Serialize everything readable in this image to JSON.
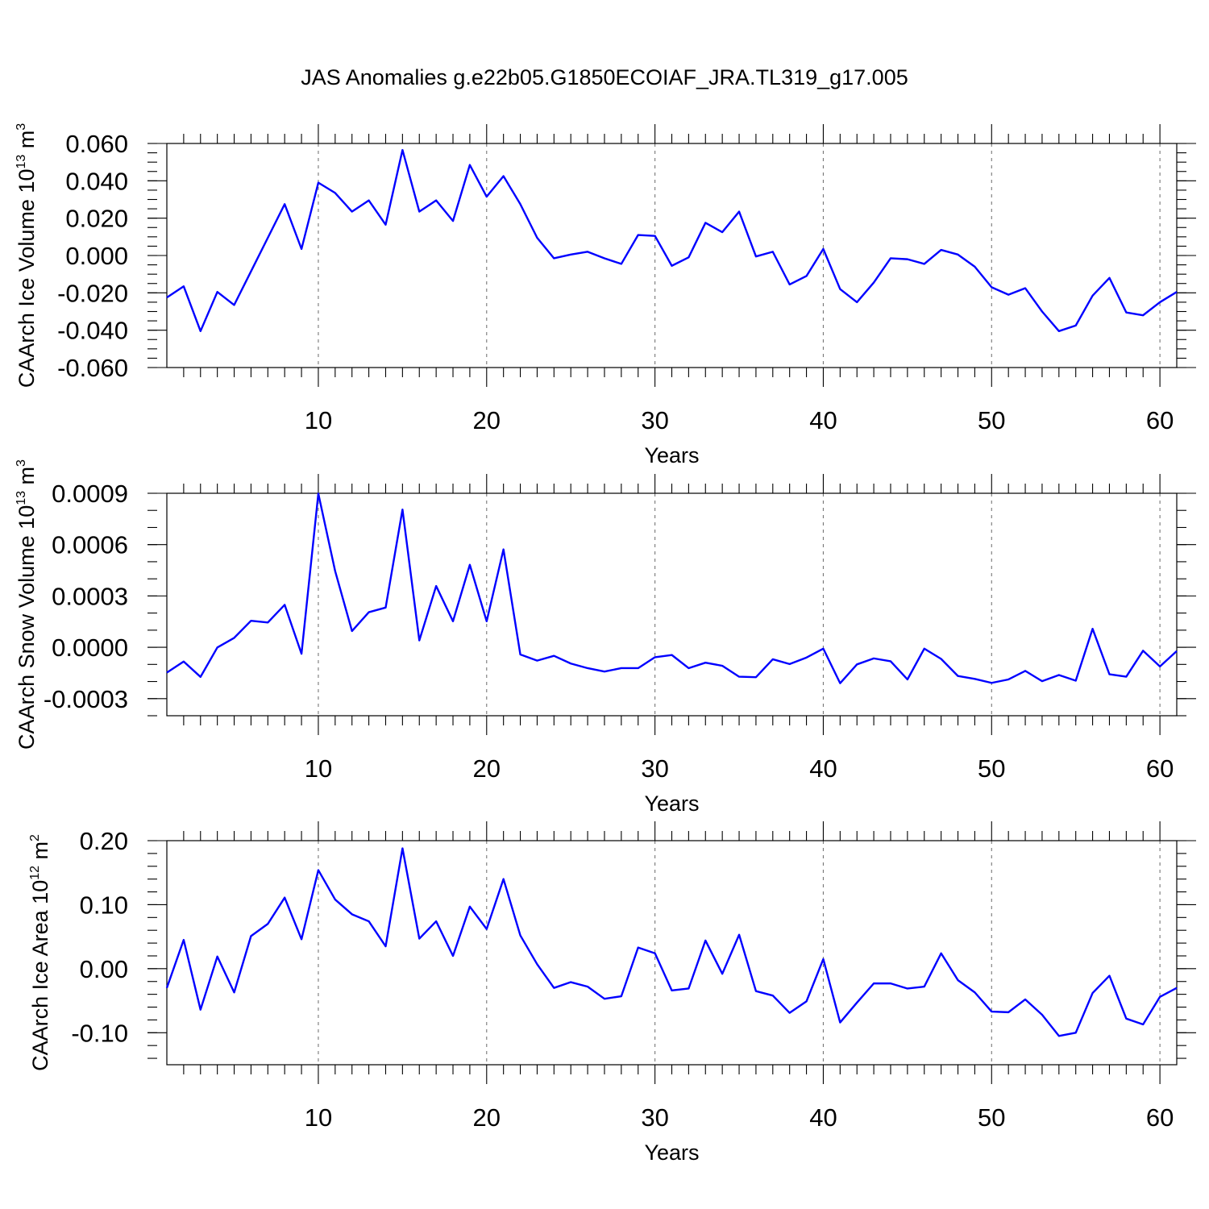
{
  "title": "JAS Anomalies g.e22b05.G1850ECOIAF_JRA.TL319_g17.005",
  "chart_data": [
    {
      "type": "line",
      "ylabel": {
        "text": "CAArch Ice Volume 10",
        "sup1": "13",
        "mid": " m",
        "sup2": "3"
      },
      "xlabel": "Years",
      "x_start": 1,
      "xlim": [
        1,
        61
      ],
      "ylim": [
        -0.06,
        0.06
      ],
      "yticks": [
        -0.06,
        -0.04,
        -0.02,
        0.0,
        0.02,
        0.04,
        0.06
      ],
      "ytick_labels": [
        "-0.060",
        "-0.040",
        "-0.020",
        "0.000",
        "0.020",
        "0.040",
        "0.060"
      ],
      "y_minor": 0.005,
      "xticks": [
        10,
        20,
        30,
        40,
        50,
        60
      ],
      "xtick_labels": [
        "10",
        "20",
        "30",
        "40",
        "50",
        "60"
      ],
      "grid": "dashed vertical at x major ticks",
      "series_color": "#0000ff",
      "values": [
        -0.0225,
        -0.0165,
        -0.0405,
        -0.0195,
        -0.0265,
        -0.0085,
        0.0095,
        0.0275,
        0.0035,
        0.039,
        0.0335,
        0.0235,
        0.0295,
        0.0165,
        0.0565,
        0.0235,
        0.0295,
        0.0185,
        0.0485,
        0.0315,
        0.0425,
        0.0275,
        0.0095,
        -0.0015,
        0.0005,
        0.002,
        -0.0015,
        -0.0045,
        0.011,
        0.0105,
        -0.0055,
        -0.001,
        0.0175,
        0.0125,
        0.0235,
        -0.0005,
        0.002,
        -0.0155,
        -0.011,
        0.0035,
        -0.018,
        -0.025,
        -0.0145,
        -0.0015,
        -0.002,
        -0.0045,
        0.003,
        0.0005,
        -0.006,
        -0.017,
        -0.021,
        -0.0175,
        -0.03,
        -0.0405,
        -0.0375,
        -0.0215,
        -0.012,
        -0.0305,
        -0.032,
        -0.025,
        -0.0195
      ]
    },
    {
      "type": "line",
      "ylabel": {
        "text": "CAArch Snow Volume 10",
        "sup1": "13",
        "mid": " m",
        "sup2": "3"
      },
      "xlabel": "Years",
      "x_start": 1,
      "xlim": [
        1,
        61
      ],
      "ylim": [
        -0.0004,
        0.0009
      ],
      "yticks": [
        -0.0003,
        0.0,
        0.0003,
        0.0006,
        0.0009
      ],
      "ytick_labels": [
        "-0.0003",
        "0.0000",
        "0.0003",
        "0.0006",
        "0.0009"
      ],
      "y_minor": 0.0001,
      "xticks": [
        10,
        20,
        30,
        40,
        50,
        60
      ],
      "xtick_labels": [
        "10",
        "20",
        "30",
        "40",
        "50",
        "60"
      ],
      "grid": "dashed vertical at x major ticks",
      "series_color": "#0000ff",
      "values": [
        -0.000148,
        -8.3e-05,
        -0.000173,
        -1e-06,
        5.5e-05,
        0.000155,
        0.000145,
        0.000248,
        -3.8e-05,
        0.000898,
        0.000445,
        9.5e-05,
        0.000205,
        0.000232,
        0.000805,
        4e-05,
        0.000358,
        0.000152,
        0.000482,
        0.000152,
        0.000572,
        -4.2e-05,
        -7.8e-05,
        -5e-05,
        -9.5e-05,
        -0.000122,
        -0.000142,
        -0.000122,
        -0.000122,
        -5.8e-05,
        -4.5e-05,
        -0.000122,
        -9e-05,
        -0.000108,
        -0.000172,
        -0.000175,
        -7e-05,
        -9.8e-05,
        -6e-05,
        -8e-06,
        -0.00021,
        -0.0001,
        -6.5e-05,
        -8.2e-05,
        -0.000188,
        -8e-06,
        -6.8e-05,
        -0.000168,
        -0.000185,
        -0.000208,
        -0.000188,
        -0.000138,
        -0.000198,
        -0.000162,
        -0.000195,
        0.000108,
        -0.000158,
        -0.000172,
        -2e-05,
        -0.000112,
        -2.2e-05
      ]
    },
    {
      "type": "line",
      "ylabel": {
        "text": "CAArch Ice Area 10",
        "sup1": "12",
        "mid": " m",
        "sup2": "2"
      },
      "xlabel": "Years",
      "x_start": 1,
      "xlim": [
        1,
        61
      ],
      "ylim": [
        -0.15,
        0.2
      ],
      "yticks": [
        -0.1,
        0.0,
        0.1,
        0.2
      ],
      "ytick_labels": [
        "-0.10",
        "0.00",
        "0.10",
        "0.20"
      ],
      "y_minor": 0.02,
      "xticks": [
        10,
        20,
        30,
        40,
        50,
        60
      ],
      "xtick_labels": [
        "10",
        "20",
        "30",
        "40",
        "50",
        "60"
      ],
      "grid": "dashed vertical at x major ticks",
      "series_color": "#0000ff",
      "values": [
        -0.03,
        0.045,
        -0.064,
        0.019,
        -0.037,
        0.051,
        0.07,
        0.111,
        0.046,
        0.154,
        0.108,
        0.085,
        0.074,
        0.035,
        0.188,
        0.047,
        0.074,
        0.02,
        0.097,
        0.062,
        0.14,
        0.052,
        0.007,
        -0.03,
        -0.021,
        -0.028,
        -0.047,
        -0.043,
        0.033,
        0.024,
        -0.034,
        -0.031,
        0.044,
        -0.008,
        0.053,
        -0.035,
        -0.042,
        -0.069,
        -0.051,
        0.015,
        -0.084,
        -0.053,
        -0.023,
        -0.023,
        -0.031,
        -0.028,
        0.024,
        -0.018,
        -0.037,
        -0.067,
        -0.068,
        -0.048,
        -0.072,
        -0.105,
        -0.1,
        -0.038,
        -0.011,
        -0.078,
        -0.087,
        -0.044,
        -0.03
      ]
    }
  ]
}
